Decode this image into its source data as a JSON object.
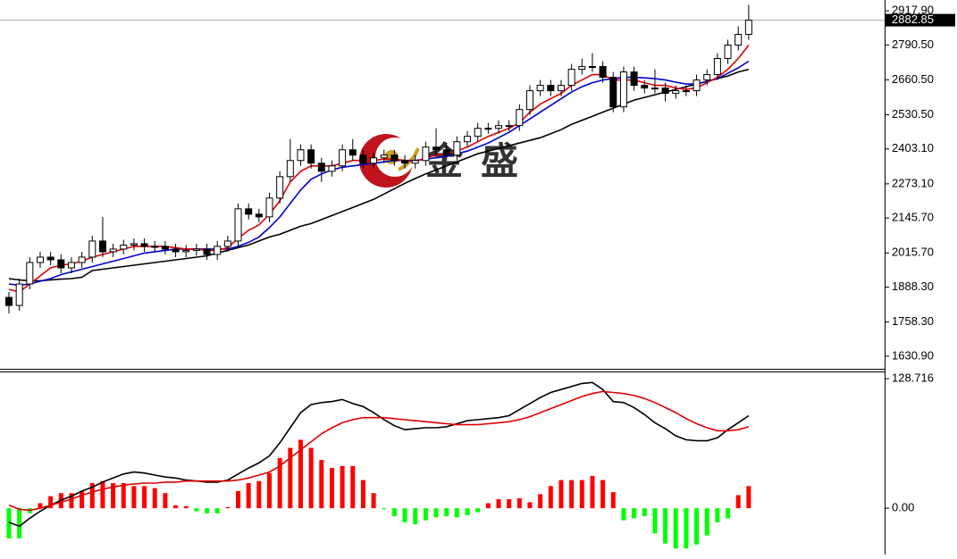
{
  "chart_data": [
    {
      "type": "candlestick",
      "watermark": "金盛",
      "last_price": 2882.85,
      "ylim": [
        1584,
        2958
      ],
      "yticks": [
        {
          "value": 2917.9,
          "label": "2917.90"
        },
        {
          "value": 2790.5,
          "label": "2790.50"
        },
        {
          "value": 2660.5,
          "label": "2660.50"
        },
        {
          "value": 2530.5,
          "label": "2530.50"
        },
        {
          "value": 2403.1,
          "label": "2403.10"
        },
        {
          "value": 2273.1,
          "label": "2273.10"
        },
        {
          "value": 2145.7,
          "label": "2145.70"
        },
        {
          "value": 2015.7,
          "label": "2015.70"
        },
        {
          "value": 1888.3,
          "label": "1888.30"
        },
        {
          "value": 1758.3,
          "label": "1758.30"
        },
        {
          "value": 1630.9,
          "label": "1630.90"
        }
      ],
      "open": [
        1850,
        1820,
        1900,
        1980,
        2000,
        1990,
        1960,
        1980,
        2000,
        2060,
        2020,
        2030,
        2045,
        2050,
        2040,
        2040,
        2030,
        2020,
        2025,
        2030,
        2010,
        2040,
        2060,
        2180,
        2160,
        2150,
        2220,
        2300,
        2360,
        2400,
        2350,
        2320,
        2340,
        2400,
        2380,
        2350,
        2370,
        2380,
        2360,
        2350,
        2360,
        2410,
        2400,
        2380,
        2430,
        2450,
        2480,
        2480,
        2490,
        2490,
        2550,
        2620,
        2640,
        2620,
        2640,
        2700,
        2710,
        2710,
        2670,
        2560,
        2690,
        2640,
        2630,
        2630,
        2610,
        2620,
        2620,
        2660,
        2680,
        2740,
        2790,
        2830
      ],
      "high": [
        1870,
        1920,
        2000,
        2020,
        2020,
        2010,
        2000,
        2020,
        2080,
        2150,
        2050,
        2065,
        2070,
        2070,
        2060,
        2060,
        2050,
        2045,
        2050,
        2050,
        2060,
        2080,
        2200,
        2200,
        2180,
        2240,
        2320,
        2440,
        2420,
        2420,
        2370,
        2360,
        2420,
        2440,
        2400,
        2390,
        2400,
        2400,
        2380,
        2380,
        2430,
        2480,
        2420,
        2450,
        2470,
        2500,
        2500,
        2510,
        2510,
        2570,
        2640,
        2660,
        2660,
        2660,
        2720,
        2740,
        2760,
        2730,
        2690,
        2710,
        2710,
        2660,
        2700,
        2650,
        2640,
        2640,
        2680,
        2700,
        2760,
        2810,
        2860,
        2940
      ],
      "low": [
        1790,
        1800,
        1880,
        1960,
        1970,
        1940,
        1940,
        1960,
        1980,
        2000,
        2000,
        2010,
        2025,
        2020,
        2020,
        2010,
        2000,
        2000,
        2005,
        1990,
        1990,
        2020,
        2040,
        2140,
        2130,
        2130,
        2200,
        2280,
        2340,
        2330,
        2280,
        2300,
        2320,
        2360,
        2330,
        2330,
        2350,
        2340,
        2330,
        2330,
        2340,
        2380,
        2360,
        2360,
        2410,
        2430,
        2460,
        2460,
        2470,
        2470,
        2530,
        2600,
        2600,
        2600,
        2620,
        2680,
        2690,
        2650,
        2540,
        2540,
        2620,
        2610,
        2610,
        2580,
        2590,
        2600,
        2600,
        2640,
        2660,
        2720,
        2770,
        2810
      ],
      "close": [
        1820,
        1900,
        1980,
        2000,
        1990,
        1960,
        1980,
        2000,
        2060,
        2020,
        2030,
        2045,
        2050,
        2040,
        2040,
        2030,
        2020,
        2025,
        2030,
        2010,
        2040,
        2060,
        2180,
        2160,
        2150,
        2220,
        2300,
        2360,
        2400,
        2350,
        2320,
        2340,
        2400,
        2380,
        2350,
        2370,
        2380,
        2360,
        2350,
        2360,
        2410,
        2400,
        2380,
        2430,
        2450,
        2480,
        2480,
        2490,
        2490,
        2550,
        2620,
        2640,
        2620,
        2640,
        2700,
        2710,
        2710,
        2670,
        2560,
        2690,
        2640,
        2630,
        2630,
        2610,
        2620,
        2620,
        2660,
        2680,
        2740,
        2790,
        2830,
        2882.85
      ],
      "series": [
        {
          "color": "#000000",
          "values": [
            1920,
            1915,
            1912,
            1912,
            1915,
            1918,
            1920,
            1925,
            1950,
            1955,
            1960,
            1965,
            1970,
            1975,
            1980,
            1985,
            1990,
            1995,
            2000,
            2005,
            2015,
            2025,
            2035,
            2045,
            2060,
            2075,
            2085,
            2100,
            2115,
            2125,
            2140,
            2155,
            2170,
            2185,
            2200,
            2215,
            2235,
            2255,
            2275,
            2293,
            2310,
            2325,
            2340,
            2355,
            2370,
            2385,
            2395,
            2405,
            2415,
            2425,
            2435,
            2445,
            2460,
            2475,
            2495,
            2510,
            2525,
            2540,
            2555,
            2570,
            2585,
            2595,
            2605,
            2615,
            2625,
            2635,
            2645,
            2655,
            2665,
            2675,
            2690,
            2700
          ]
        },
        {
          "color": "#0000cc",
          "values": [
            1900,
            1895,
            1900,
            1910,
            1920,
            1935,
            1945,
            1955,
            1965,
            1975,
            1985,
            1995,
            2005,
            2015,
            2020,
            2025,
            2030,
            2030,
            2030,
            2030,
            2030,
            2030,
            2040,
            2055,
            2075,
            2110,
            2150,
            2200,
            2250,
            2290,
            2310,
            2325,
            2335,
            2340,
            2345,
            2350,
            2355,
            2360,
            2360,
            2360,
            2365,
            2370,
            2375,
            2385,
            2395,
            2410,
            2425,
            2445,
            2465,
            2490,
            2515,
            2540,
            2565,
            2590,
            2615,
            2635,
            2650,
            2660,
            2665,
            2670,
            2670,
            2668,
            2665,
            2660,
            2652,
            2645,
            2645,
            2655,
            2665,
            2685,
            2705,
            2730
          ]
        },
        {
          "color": "#e00000",
          "values": [
            1880,
            1870,
            1900,
            1930,
            1960,
            1970,
            1975,
            1985,
            2000,
            2010,
            2020,
            2030,
            2040,
            2040,
            2040,
            2040,
            2035,
            2030,
            2030,
            2025,
            2025,
            2035,
            2070,
            2100,
            2120,
            2160,
            2210,
            2280,
            2320,
            2340,
            2340,
            2340,
            2350,
            2360,
            2360,
            2360,
            2365,
            2365,
            2360,
            2355,
            2370,
            2380,
            2385,
            2395,
            2410,
            2430,
            2450,
            2465,
            2480,
            2500,
            2540,
            2570,
            2590,
            2610,
            2640,
            2660,
            2680,
            2680,
            2660,
            2660,
            2660,
            2650,
            2640,
            2640,
            2630,
            2625,
            2630,
            2650,
            2670,
            2700,
            2740,
            2790
          ]
        }
      ]
    },
    {
      "type": "macd",
      "ylim": [
        -46,
        135
      ],
      "yticks": [
        128.716,
        {
          "value": 0,
          "label": "0.00"
        }
      ],
      "histogram": [
        -30,
        -30,
        -5,
        5,
        12,
        15,
        15,
        17,
        25,
        27,
        25,
        25,
        22,
        22,
        20,
        15,
        3,
        2,
        -3,
        -5,
        -5,
        1,
        17,
        25,
        27,
        35,
        50,
        60,
        68,
        60,
        48,
        40,
        42,
        42,
        28,
        15,
        -1,
        -8,
        -14,
        -16,
        -12,
        -9,
        -8,
        -9,
        -7,
        -4,
        5,
        9,
        9,
        10,
        6,
        14,
        22,
        28,
        28,
        28,
        32,
        28,
        16,
        -12,
        -10,
        -8,
        -25,
        -35,
        -40,
        -40,
        -36,
        -27,
        -14,
        -10,
        13,
        22
      ],
      "up_color": "#ff0000",
      "down_color": "#00ff00",
      "series": [
        {
          "color": "#000000",
          "values": [
            -14,
            -18,
            -10,
            -3,
            3,
            8,
            12,
            17,
            21,
            26,
            30,
            34,
            36,
            35,
            33,
            31,
            30,
            28,
            27,
            26,
            26,
            28,
            34,
            40,
            45,
            52,
            65,
            80,
            95,
            103,
            105,
            106,
            108,
            104,
            101,
            95,
            88,
            82,
            78,
            79,
            80,
            80,
            81,
            84,
            87,
            88,
            89,
            90,
            92,
            98,
            104,
            110,
            115,
            118,
            121,
            124,
            125,
            118,
            106,
            105,
            100,
            93,
            85,
            79,
            72,
            68,
            67,
            67,
            70,
            78,
            85,
            92
          ]
        },
        {
          "color": "#e00000",
          "values": [
            3,
            -1,
            -2,
            0,
            3,
            6,
            9,
            13,
            16,
            19,
            21,
            23,
            24,
            25,
            25,
            26,
            26,
            27,
            27,
            27,
            27,
            27,
            28,
            30,
            33,
            36,
            42,
            50,
            58,
            66,
            74,
            80,
            85,
            88,
            90,
            90,
            90,
            89,
            88,
            87,
            86,
            85,
            84,
            83,
            83,
            83,
            84,
            85,
            86,
            88,
            91,
            95,
            99,
            103,
            107,
            111,
            114,
            116,
            115,
            114,
            112,
            109,
            105,
            100,
            95,
            89,
            84,
            80,
            77,
            77,
            78,
            81
          ]
        }
      ]
    }
  ]
}
